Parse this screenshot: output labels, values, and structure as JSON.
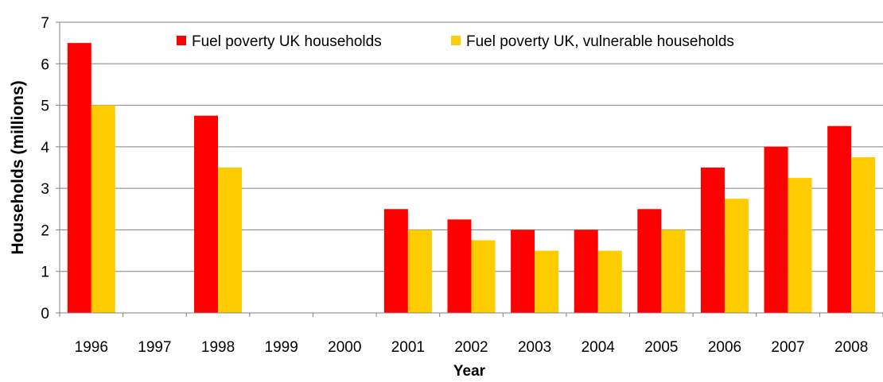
{
  "chart_data": {
    "type": "bar",
    "xlabel": "Year",
    "ylabel": "Households (millions)",
    "ylim": [
      0,
      7
    ],
    "yticks": [
      0,
      1,
      2,
      3,
      4,
      5,
      6,
      7
    ],
    "grid": true,
    "legend_position": "top",
    "categories": [
      "1996",
      "1997",
      "1998",
      "1999",
      "2000",
      "2001",
      "2002",
      "2003",
      "2004",
      "2005",
      "2006",
      "2007",
      "2008"
    ],
    "series": [
      {
        "name": "Fuel poverty UK households",
        "color": "#ff0000",
        "values": [
          6.5,
          null,
          4.75,
          null,
          null,
          2.5,
          2.25,
          2.0,
          2.0,
          2.5,
          3.5,
          4.0,
          4.5
        ]
      },
      {
        "name": "Fuel poverty UK, vulnerable households",
        "color": "#ffcc00",
        "values": [
          5.0,
          null,
          3.5,
          null,
          null,
          2.0,
          1.75,
          1.5,
          1.5,
          2.0,
          2.75,
          3.25,
          3.75
        ]
      }
    ]
  }
}
